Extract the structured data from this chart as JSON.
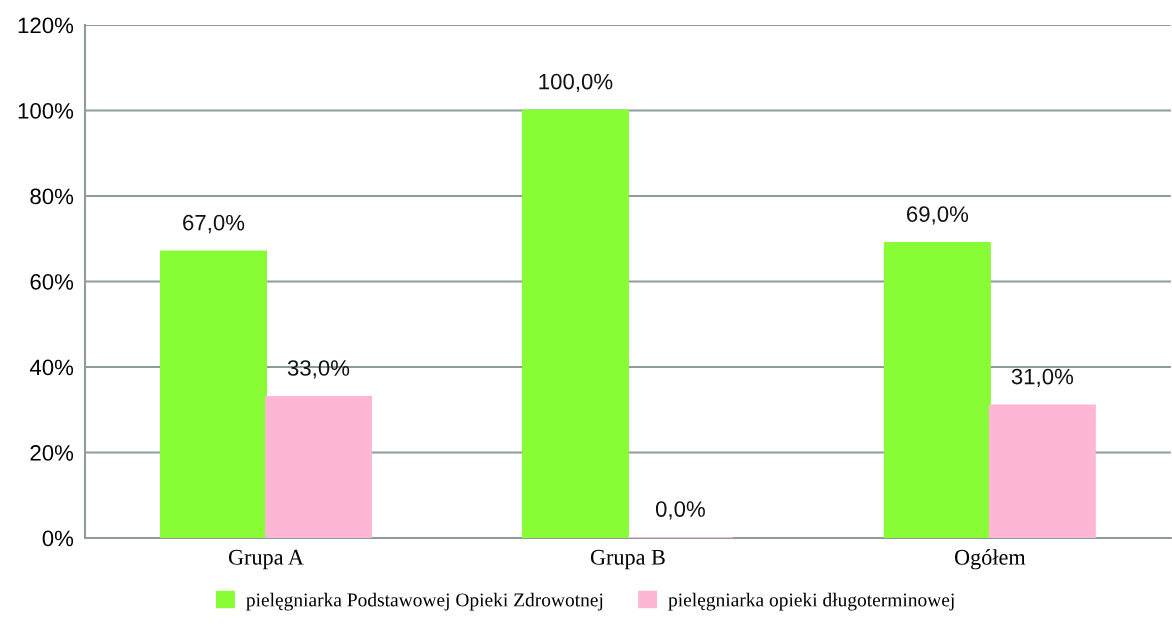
{
  "chart_data": {
    "type": "bar",
    "categories": [
      "Grupa A",
      "Grupa B",
      "Ogółem"
    ],
    "series": [
      {
        "name": "pielęgniarka Podstawowej Opieki Zdrowotnej",
        "color": "#88fc35",
        "values": [
          67.0,
          100.0,
          69.0
        ],
        "value_labels": [
          "67,0%",
          "100,0%",
          "69,0%"
        ]
      },
      {
        "name": "pielęgniarka opieki długoterminowej",
        "color": "#fdb6d4",
        "values": [
          33.0,
          0.0,
          31.0
        ],
        "value_labels": [
          "33,0%",
          "0,0%",
          "31,0%"
        ]
      }
    ],
    "ylim": [
      0,
      120
    ],
    "yticks": [
      {
        "value": 0,
        "label": "0%"
      },
      {
        "value": 20,
        "label": "20%"
      },
      {
        "value": 40,
        "label": "40%"
      },
      {
        "value": 60,
        "label": "60%"
      },
      {
        "value": 80,
        "label": "80%"
      },
      {
        "value": 100,
        "label": "100%"
      },
      {
        "value": 120,
        "label": "120%"
      }
    ],
    "grid": "y",
    "legend": "bottom"
  }
}
